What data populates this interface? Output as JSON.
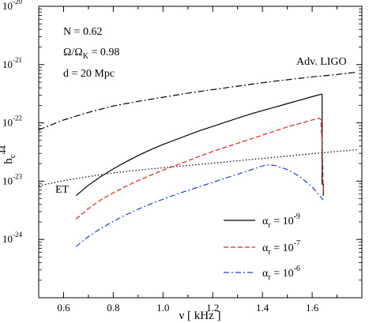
{
  "chart_data": {
    "type": "line",
    "xlabel": {
      "main": "ν [ kHz ]"
    },
    "ylabel": {
      "main": "h",
      "sub": "c",
      "sup": "44"
    },
    "xlim": [
      0.5,
      1.8
    ],
    "ylim_exponent": [
      -25,
      -20
    ],
    "y_scale": "log",
    "x_ticks": [
      {
        "value": 0.6,
        "label": "0.6"
      },
      {
        "value": 0.8,
        "label": "0.8"
      },
      {
        "value": 1.0,
        "label": "1.0"
      },
      {
        "value": 1.2,
        "label": "1.2"
      },
      {
        "value": 1.4,
        "label": "1.4"
      },
      {
        "value": 1.6,
        "label": "1.6"
      }
    ],
    "y_ticks": [
      {
        "exp": -24,
        "base": "10",
        "sup": "-24"
      },
      {
        "exp": -23,
        "base": "10",
        "sup": "-23"
      },
      {
        "exp": -22,
        "base": "10",
        "sup": "-22"
      },
      {
        "exp": -21,
        "base": "10",
        "sup": "-21"
      },
      {
        "exp": -20,
        "base": "10",
        "sup": "-20"
      }
    ],
    "annotations": {
      "n": "N = 0.62",
      "omega_num": "Ω/Ω",
      "omega_sub": "K",
      "omega_val": " = 0.98",
      "distance": "d = 20 Mpc"
    },
    "series": [
      {
        "name": "α_r = 10^-9",
        "legend": {
          "alpha": "α",
          "sub": "r",
          "mid": " = 10",
          "sup": "-9"
        },
        "color": "#000000",
        "dash": "",
        "x": [
          0.65,
          0.7,
          0.75,
          0.8,
          0.85,
          0.9,
          0.95,
          1.0,
          1.05,
          1.1,
          1.15,
          1.2,
          1.25,
          1.3,
          1.35,
          1.4,
          1.45,
          1.5,
          1.55,
          1.6,
          1.635,
          1.64,
          1.64,
          1.645,
          1.645
        ],
        "log10y": [
          -23.25,
          -23.07,
          -22.92,
          -22.79,
          -22.67,
          -22.56,
          -22.46,
          -22.37,
          -22.29,
          -22.21,
          -22.13,
          -22.06,
          -21.99,
          -21.92,
          -21.85,
          -21.79,
          -21.73,
          -21.67,
          -21.61,
          -21.55,
          -21.51,
          -21.51,
          -23.05,
          -23.05,
          -23.25
        ]
      },
      {
        "name": "α_r = 10^-7",
        "legend": {
          "alpha": "α",
          "sub": "r",
          "mid": " = 10",
          "sup": "-7"
        },
        "color": "#e8201a",
        "dash": "6,3",
        "x": [
          0.65,
          0.7,
          0.75,
          0.8,
          0.85,
          0.9,
          0.95,
          1.0,
          1.05,
          1.1,
          1.15,
          1.2,
          1.25,
          1.3,
          1.35,
          1.4,
          1.45,
          1.5,
          1.55,
          1.6,
          1.63,
          1.635,
          1.64,
          1.645
        ],
        "log10y": [
          -23.65,
          -23.47,
          -23.32,
          -23.2,
          -23.09,
          -22.99,
          -22.9,
          -22.81,
          -22.73,
          -22.65,
          -22.57,
          -22.49,
          -22.42,
          -22.35,
          -22.28,
          -22.21,
          -22.14,
          -22.07,
          -22.01,
          -21.95,
          -21.92,
          -21.95,
          -22.35,
          -23.2
        ]
      },
      {
        "name": "α_r = 10^-6",
        "legend": {
          "alpha": "α",
          "sub": "r",
          "mid": " = 10",
          "sup": "-6"
        },
        "color": "#1f3fd8",
        "dash": "7,3,2,3",
        "x": [
          0.65,
          0.7,
          0.75,
          0.8,
          0.85,
          0.9,
          0.95,
          1.0,
          1.05,
          1.1,
          1.15,
          1.2,
          1.25,
          1.3,
          1.35,
          1.4,
          1.42,
          1.45,
          1.5,
          1.55,
          1.6,
          1.62,
          1.64,
          1.645
        ],
        "log10y": [
          -24.12,
          -23.95,
          -23.81,
          -23.69,
          -23.58,
          -23.48,
          -23.39,
          -23.31,
          -23.23,
          -23.16,
          -23.09,
          -23.02,
          -22.95,
          -22.88,
          -22.81,
          -22.74,
          -22.72,
          -22.73,
          -22.8,
          -22.92,
          -23.1,
          -23.2,
          -23.3,
          -23.32
        ]
      },
      {
        "name": "Adv. LIGO",
        "label": "Adv. LIGO",
        "color": "#000000",
        "dash": "8,3,2,3",
        "x": [
          0.5,
          0.6,
          0.7,
          0.8,
          0.9,
          1.0,
          1.1,
          1.2,
          1.3,
          1.4,
          1.5,
          1.6,
          1.7,
          1.78
        ],
        "log10y": [
          -22.12,
          -21.95,
          -21.82,
          -21.71,
          -21.63,
          -21.56,
          -21.49,
          -21.43,
          -21.37,
          -21.31,
          -21.26,
          -21.21,
          -21.17,
          -21.13
        ]
      },
      {
        "name": "ET",
        "label": "ET",
        "color": "#000000",
        "dash": "1.5,2.5",
        "x": [
          0.5,
          0.6,
          0.7,
          0.8,
          0.9,
          1.0,
          1.1,
          1.2,
          1.3,
          1.4,
          1.5,
          1.6,
          1.7,
          1.78
        ],
        "log10y": [
          -23.08,
          -22.99,
          -22.92,
          -22.86,
          -22.81,
          -22.77,
          -22.73,
          -22.69,
          -22.65,
          -22.61,
          -22.57,
          -22.53,
          -22.49,
          -22.46
        ]
      }
    ]
  }
}
